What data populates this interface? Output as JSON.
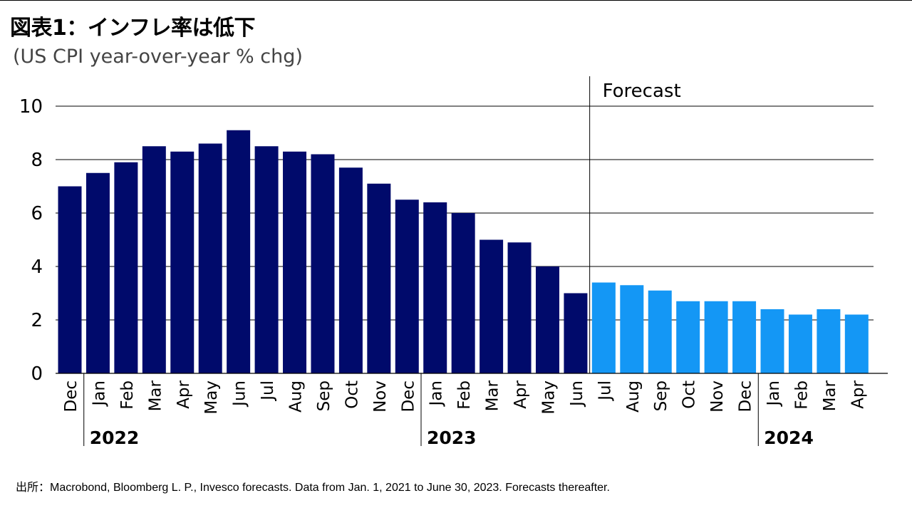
{
  "header": {
    "title": "図表1：インフレ率は低下",
    "subtitle": "(US CPI year-over-year % chg)"
  },
  "source_note": "出所：Macrobond, Bloomberg L. P., Invesco forecasts. Data from Jan. 1, 2021 to June 30, 2023. Forecasts thereafter.",
  "colors": {
    "actual": "#000a6b",
    "forecast": "#1497f5",
    "grid": "#000000"
  },
  "chart_data": {
    "type": "bar",
    "categories": [
      "Dec",
      "Jan",
      "Feb",
      "Mar",
      "Apr",
      "May",
      "Jun",
      "Jul",
      "Aug",
      "Sep",
      "Oct",
      "Nov",
      "Dec",
      "Jan",
      "Feb",
      "Mar",
      "Apr",
      "May",
      "Jun",
      "Jul",
      "Aug",
      "Sep",
      "Oct",
      "Nov",
      "Dec",
      "Jan",
      "Feb",
      "Mar",
      "Apr"
    ],
    "values": [
      7.0,
      7.5,
      7.9,
      8.5,
      8.3,
      8.6,
      9.1,
      8.5,
      8.3,
      8.2,
      7.7,
      7.1,
      6.5,
      6.4,
      6.0,
      5.0,
      4.9,
      4.0,
      3.0,
      3.4,
      3.3,
      3.1,
      2.7,
      2.7,
      2.7,
      2.4,
      2.2,
      2.4,
      2.2
    ],
    "forecast_start_index": 19,
    "forecast_label": "Forecast",
    "year_groups": [
      {
        "label": "2022",
        "start_index": 1
      },
      {
        "label": "2023",
        "start_index": 13
      },
      {
        "label": "2024",
        "start_index": 25
      }
    ],
    "ylim": [
      0,
      10
    ],
    "yticks": [
      "0",
      "2",
      "4",
      "6",
      "8",
      "10"
    ],
    "grid": true,
    "xlabel": "",
    "ylabel": ""
  }
}
